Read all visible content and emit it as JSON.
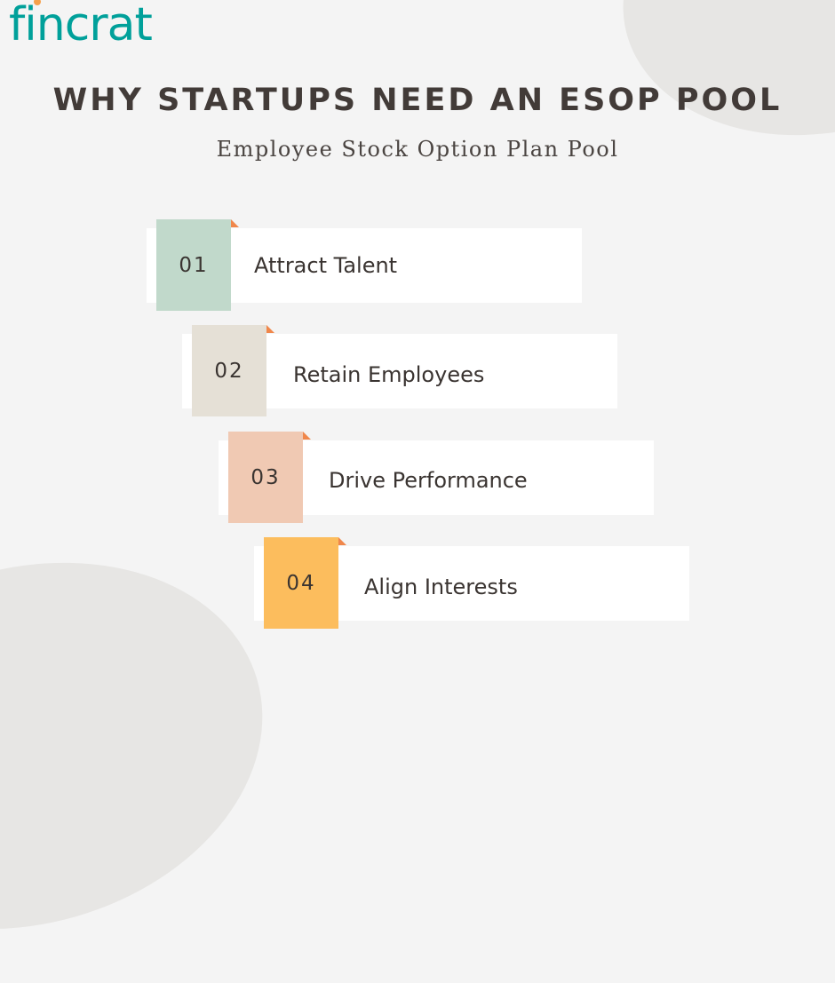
{
  "brand": {
    "logo_text": "fincrat",
    "logo_color": "#00a09a",
    "dot_color": "#f6a04b"
  },
  "header": {
    "title": "WHY STARTUPS NEED AN ESOP POOL",
    "subtitle": "Employee Stock Option Plan Pool"
  },
  "steps": [
    {
      "number": "01",
      "label": "Attract Talent",
      "color": "#c1d9cb"
    },
    {
      "number": "02",
      "label": "Retain Employees",
      "color": "#e5e0d6"
    },
    {
      "number": "03",
      "label": "Drive Performance",
      "color": "#f0c9b3"
    },
    {
      "number": "04",
      "label": "Align Interests",
      "color": "#fcbd5d"
    }
  ],
  "accent_fold_color": "#f0874b"
}
